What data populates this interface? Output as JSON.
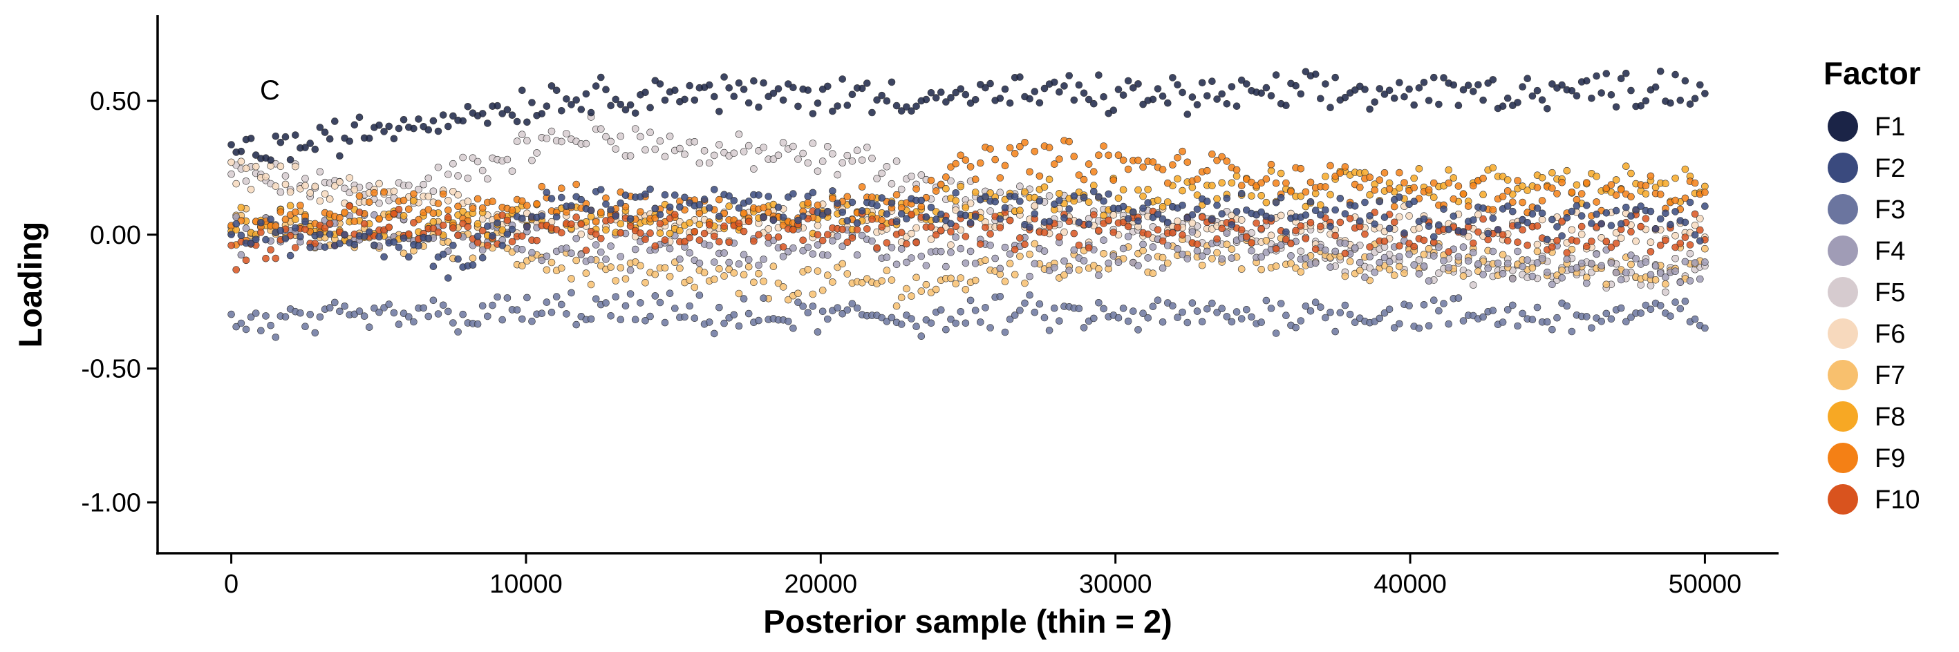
{
  "chart_data": {
    "type": "scatter",
    "panel_tag": "C",
    "xlabel": "Posterior sample (thin = 2)",
    "ylabel": "Loading",
    "xlim": [
      -2500,
      52500
    ],
    "ylim": [
      -1.19,
      0.82
    ],
    "x_ticks": [
      0,
      10000,
      20000,
      30000,
      40000,
      50000
    ],
    "x_tick_labels": [
      "0",
      "10000",
      "20000",
      "30000",
      "40000",
      "50000"
    ],
    "y_ticks": [
      0.5,
      0.0,
      -0.5,
      -1.0
    ],
    "y_tick_labels": [
      "0.50",
      "0.00",
      "-0.50",
      "-1.00"
    ],
    "grid": false,
    "legend": {
      "title": "Factor",
      "placement": "right"
    },
    "series": [
      {
        "name": "F1",
        "color": "#1b2447",
        "x": [
          0,
          2000,
          4000,
          6000,
          8000,
          10000,
          12000,
          14000,
          16000,
          18000,
          20000,
          22000,
          24000,
          26000,
          28000,
          30000,
          32000,
          34000,
          36000,
          38000,
          40000,
          42000,
          44000,
          46000,
          48000,
          50000
        ],
        "values": [
          0.31,
          0.33,
          0.37,
          0.42,
          0.45,
          0.49,
          0.52,
          0.53,
          0.53,
          0.52,
          0.52,
          0.52,
          0.52,
          0.52,
          0.53,
          0.52,
          0.52,
          0.52,
          0.53,
          0.53,
          0.53,
          0.53,
          0.54,
          0.54,
          0.55,
          0.55
        ]
      },
      {
        "name": "F2",
        "color": "#3a4a7e",
        "x": [
          0,
          2000,
          4000,
          6000,
          8000,
          10000,
          12000,
          14000,
          16000,
          18000,
          20000,
          22000,
          24000,
          26000,
          28000,
          30000,
          32000,
          34000,
          36000,
          38000,
          40000,
          42000,
          44000,
          46000,
          48000,
          50000
        ],
        "values": [
          0.02,
          0.0,
          -0.03,
          -0.06,
          -0.1,
          0.08,
          0.12,
          0.13,
          0.12,
          0.11,
          0.11,
          0.1,
          0.09,
          0.1,
          0.1,
          0.1,
          0.09,
          0.09,
          0.08,
          0.07,
          0.07,
          0.07,
          0.06,
          0.06,
          0.06,
          0.05
        ]
      },
      {
        "name": "F3",
        "color": "#6b759f",
        "x": [
          0,
          2000,
          4000,
          6000,
          8000,
          10000,
          12000,
          14000,
          16000,
          18000,
          20000,
          22000,
          24000,
          26000,
          28000,
          30000,
          32000,
          34000,
          36000,
          38000,
          40000,
          42000,
          44000,
          46000,
          48000,
          50000
        ],
        "values": [
          -0.33,
          -0.33,
          -0.32,
          -0.3,
          -0.3,
          -0.29,
          -0.28,
          -0.29,
          -0.3,
          -0.31,
          -0.31,
          -0.3,
          -0.32,
          -0.3,
          -0.3,
          -0.31,
          -0.3,
          -0.3,
          -0.29,
          -0.29,
          -0.3,
          -0.3,
          -0.3,
          -0.31,
          -0.3,
          -0.3
        ]
      },
      {
        "name": "F4",
        "color": "#a09cb6",
        "x": [
          0,
          2000,
          4000,
          6000,
          8000,
          10000,
          12000,
          14000,
          16000,
          18000,
          20000,
          22000,
          24000,
          26000,
          28000,
          30000,
          32000,
          34000,
          36000,
          38000,
          40000,
          42000,
          44000,
          46000,
          48000,
          50000
        ],
        "values": [
          0.0,
          0.0,
          0.01,
          0.01,
          0.0,
          -0.02,
          -0.05,
          -0.06,
          -0.06,
          -0.05,
          -0.05,
          -0.05,
          -0.06,
          -0.08,
          -0.08,
          -0.07,
          -0.06,
          -0.05,
          -0.06,
          -0.08,
          -0.1,
          -0.11,
          -0.12,
          -0.12,
          -0.13,
          -0.13
        ]
      },
      {
        "name": "F5",
        "color": "#d6cbcf",
        "x": [
          0,
          2000,
          4000,
          6000,
          8000,
          10000,
          12000,
          14000,
          16000,
          18000,
          20000,
          22000,
          24000,
          26000,
          28000,
          30000,
          32000,
          34000,
          36000,
          38000,
          40000,
          42000,
          44000,
          46000,
          48000,
          50000
        ],
        "values": [
          0.22,
          0.2,
          0.17,
          0.16,
          0.24,
          0.32,
          0.38,
          0.35,
          0.31,
          0.3,
          0.28,
          0.27,
          0.16,
          0.12,
          0.1,
          0.08,
          0.06,
          0.02,
          -0.04,
          -0.08,
          -0.1,
          -0.12,
          -0.13,
          -0.14,
          -0.15,
          -0.15
        ]
      },
      {
        "name": "F6",
        "color": "#f7d9bd",
        "x": [
          0,
          2000,
          4000,
          6000,
          8000,
          10000,
          12000,
          14000,
          16000,
          18000,
          20000,
          22000,
          24000,
          26000,
          28000,
          30000,
          32000,
          34000,
          36000,
          38000,
          40000,
          42000,
          44000,
          46000,
          48000,
          50000
        ],
        "values": [
          0.22,
          0.19,
          0.15,
          0.12,
          0.09,
          0.07,
          0.06,
          0.05,
          0.05,
          0.05,
          0.05,
          0.05,
          0.04,
          0.04,
          0.04,
          0.04,
          0.03,
          0.03,
          0.03,
          0.03,
          0.03,
          0.02,
          0.02,
          0.02,
          0.02,
          0.02
        ]
      },
      {
        "name": "F7",
        "color": "#f8c06e",
        "x": [
          0,
          2000,
          4000,
          6000,
          8000,
          10000,
          12000,
          14000,
          16000,
          18000,
          20000,
          22000,
          24000,
          26000,
          28000,
          30000,
          32000,
          34000,
          36000,
          38000,
          40000,
          42000,
          44000,
          46000,
          48000,
          50000
        ],
        "values": [
          0.04,
          0.03,
          0.02,
          0.0,
          -0.03,
          -0.08,
          -0.12,
          -0.15,
          -0.17,
          -0.18,
          -0.18,
          -0.18,
          -0.2,
          -0.12,
          -0.1,
          -0.09,
          -0.08,
          -0.08,
          -0.09,
          -0.1,
          -0.1,
          -0.11,
          -0.11,
          -0.12,
          -0.12,
          -0.12
        ]
      },
      {
        "name": "F8",
        "color": "#f7a824",
        "x": [
          0,
          2000,
          4000,
          6000,
          8000,
          10000,
          12000,
          14000,
          16000,
          18000,
          20000,
          22000,
          24000,
          26000,
          28000,
          30000,
          32000,
          34000,
          36000,
          38000,
          40000,
          42000,
          44000,
          46000,
          48000,
          50000
        ],
        "values": [
          0.03,
          0.04,
          0.05,
          0.06,
          0.05,
          0.05,
          0.06,
          0.06,
          0.06,
          0.06,
          0.07,
          0.08,
          0.1,
          0.13,
          0.14,
          0.14,
          0.15,
          0.16,
          0.17,
          0.18,
          0.18,
          0.19,
          0.19,
          0.19,
          0.18,
          0.18
        ]
      },
      {
        "name": "F9",
        "color": "#f48015",
        "x": [
          0,
          2000,
          4000,
          6000,
          8000,
          10000,
          12000,
          14000,
          16000,
          18000,
          20000,
          22000,
          24000,
          26000,
          28000,
          30000,
          32000,
          34000,
          36000,
          38000,
          40000,
          42000,
          44000,
          46000,
          48000,
          50000
        ],
        "values": [
          -0.02,
          0.05,
          0.09,
          0.1,
          0.11,
          0.12,
          0.11,
          0.1,
          0.09,
          0.09,
          0.1,
          0.12,
          0.2,
          0.29,
          0.29,
          0.26,
          0.25,
          0.24,
          0.21,
          0.19,
          0.17,
          0.16,
          0.15,
          0.14,
          0.14,
          0.14
        ]
      },
      {
        "name": "F10",
        "color": "#d9531e",
        "x": [
          0,
          2000,
          4000,
          6000,
          8000,
          10000,
          12000,
          14000,
          16000,
          18000,
          20000,
          22000,
          24000,
          26000,
          28000,
          30000,
          32000,
          34000,
          36000,
          38000,
          40000,
          42000,
          44000,
          46000,
          48000,
          50000
        ],
        "values": [
          -0.08,
          -0.02,
          0.03,
          0.04,
          0.02,
          0.02,
          0.02,
          0.02,
          0.02,
          0.02,
          0.02,
          0.02,
          0.02,
          0.02,
          0.02,
          0.02,
          0.02,
          0.01,
          0.01,
          0.01,
          0.01,
          0.0,
          0.0,
          0.0,
          0.0,
          0.0
        ]
      }
    ]
  }
}
